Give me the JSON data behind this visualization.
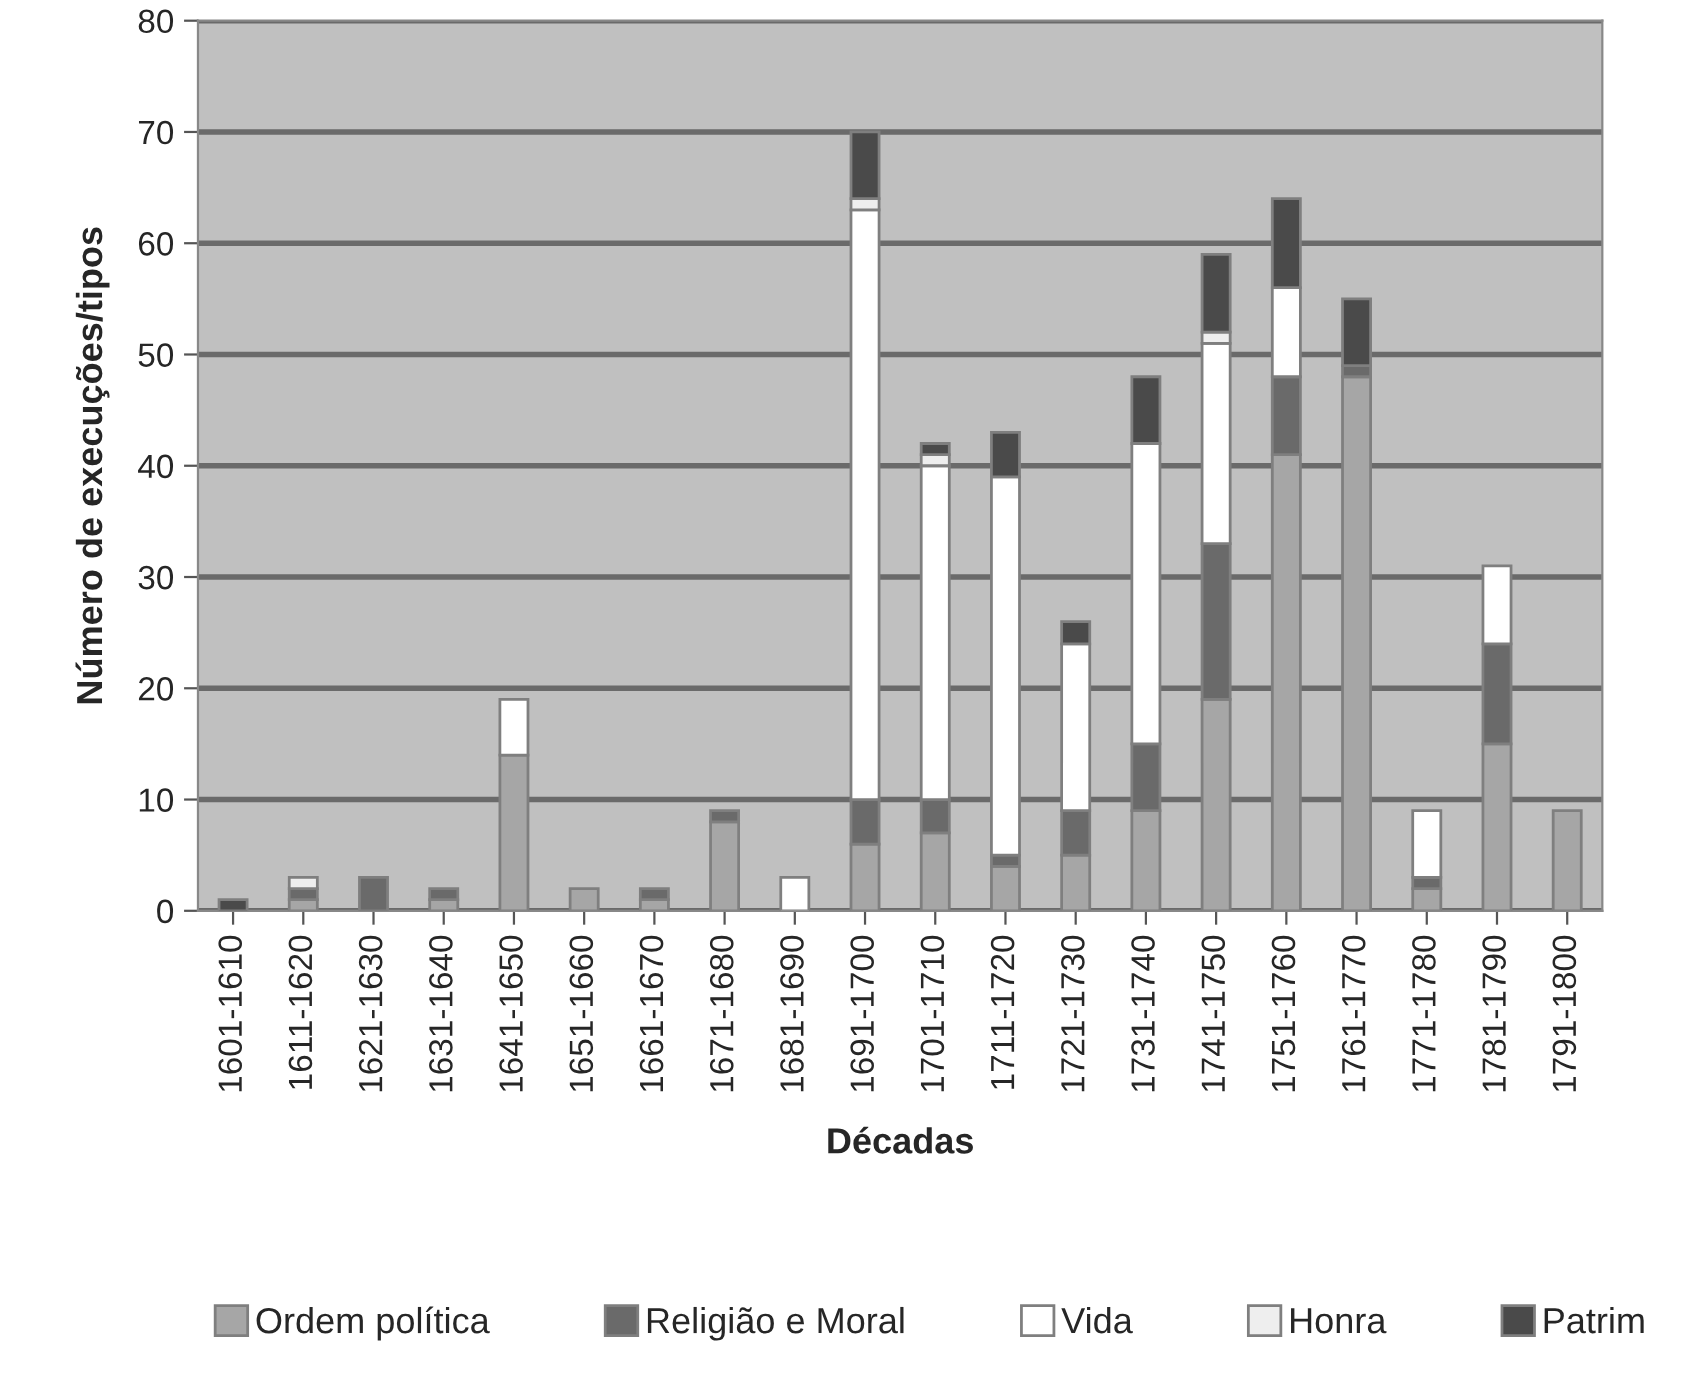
{
  "chart_data": {
    "type": "bar",
    "stacked": true,
    "xlabel": "Décadas",
    "ylabel": "Número de execuções/tipos",
    "categories": [
      "1601-1610",
      "1611-1620",
      "1621-1630",
      "1631-1640",
      "1641-1650",
      "1651-1660",
      "1661-1670",
      "1671-1680",
      "1681-1690",
      "1691-1700",
      "1701-1710",
      "1711-1720",
      "1721-1730",
      "1731-1740",
      "1741-1750",
      "1751-1760",
      "1761-1770",
      "1771-1780",
      "1781-1790",
      "1791-1800"
    ],
    "series": [
      {
        "name": "Ordem política",
        "color": "#a6a6a6",
        "values": [
          0,
          1,
          0,
          1,
          14,
          2,
          1,
          8,
          0,
          6,
          7,
          4,
          5,
          9,
          19,
          41,
          48,
          2,
          15,
          9
        ]
      },
      {
        "name": "Religião e Moral",
        "color": "#6a6a6a",
        "values": [
          0,
          1,
          3,
          1,
          0,
          0,
          1,
          1,
          0,
          4,
          3,
          1,
          4,
          6,
          14,
          7,
          1,
          1,
          9,
          0
        ]
      },
      {
        "name": "Vida",
        "color": "#ffffff",
        "values": [
          0,
          0,
          0,
          0,
          5,
          0,
          0,
          0,
          3,
          53,
          30,
          34,
          15,
          27,
          18,
          8,
          0,
          6,
          7,
          0
        ]
      },
      {
        "name": "Honra",
        "color": "#eeeeee",
        "values": [
          0,
          1,
          0,
          0,
          0,
          0,
          0,
          0,
          0,
          1,
          1,
          0,
          0,
          0,
          1,
          0,
          0,
          0,
          0,
          0
        ]
      },
      {
        "name": "Patrim",
        "color": "#4a4a4a",
        "values": [
          1,
          0,
          0,
          0,
          0,
          0,
          0,
          0,
          0,
          6,
          1,
          4,
          2,
          6,
          7,
          8,
          6,
          0,
          0,
          0
        ]
      }
    ],
    "ylim": [
      0,
      80
    ],
    "yticks": [
      0,
      10,
      20,
      30,
      40,
      50,
      60,
      70,
      80
    ],
    "grid": "y",
    "legend": "bottom"
  }
}
